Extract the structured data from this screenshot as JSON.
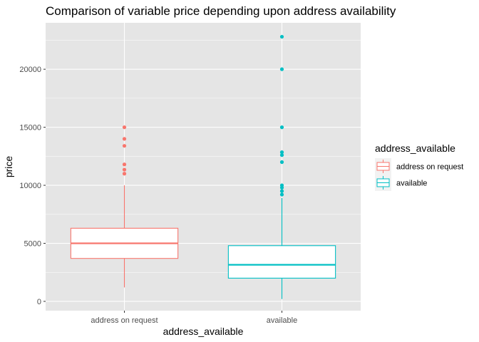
{
  "chart_data": {
    "type": "boxplot",
    "title": "Comparison of variable price depending upon address availability",
    "xlabel": "address_available",
    "ylabel": "price",
    "ylim": [
      -800,
      24000
    ],
    "yticks": [
      0,
      5000,
      10000,
      15000,
      20000
    ],
    "ytick_labels": [
      "0",
      "5000",
      "10000",
      "15000",
      "20000"
    ],
    "grid": true,
    "panel_background": "#e5e5e5",
    "legend": {
      "title": "address_available",
      "placement": "right",
      "entries": [
        "address on request",
        "available"
      ]
    },
    "categories": [
      "address on request",
      "available"
    ],
    "series": [
      {
        "name": "address on request",
        "color": "#f8766d",
        "whisker_low": 1200,
        "q1": 3700,
        "median": 5000,
        "q3": 6300,
        "whisker_high": 10000,
        "outliers": [
          11000,
          11350,
          11800,
          13400,
          14000,
          15000
        ]
      },
      {
        "name": "available",
        "color": "#00bfc4",
        "whisker_low": 200,
        "q1": 2000,
        "median": 3150,
        "q3": 4800,
        "whisker_high": 8900,
        "outliers": [
          9200,
          9500,
          9800,
          10000,
          12000,
          12600,
          12850,
          15000,
          20000,
          22800
        ]
      }
    ]
  }
}
